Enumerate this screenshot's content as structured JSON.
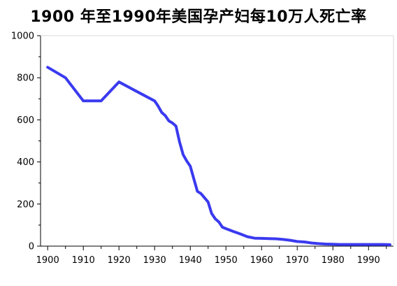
{
  "chart_data": {
    "type": "line",
    "title": "1900 年至1990年美国孕产妇每10万人死亡率",
    "xlabel": "",
    "ylabel": "",
    "xlim": [
      1898,
      1997
    ],
    "ylim": [
      0,
      1000
    ],
    "x_ticks": [
      1900,
      1910,
      1920,
      1930,
      1940,
      1950,
      1960,
      1970,
      1980,
      1990
    ],
    "y_ticks": [
      0,
      200,
      400,
      600,
      800,
      1000
    ],
    "grid": false,
    "legend": "none",
    "series": [
      {
        "color": "#3a3af0",
        "x": [
          1900,
          1905,
          1910,
          1915,
          1920,
          1925,
          1930,
          1931,
          1932,
          1933,
          1934,
          1935,
          1936,
          1937,
          1938,
          1939,
          1940,
          1941,
          1942,
          1943,
          1944,
          1945,
          1946,
          1947,
          1948,
          1949,
          1950,
          1952,
          1954,
          1956,
          1958,
          1960,
          1962,
          1964,
          1966,
          1968,
          1970,
          1972,
          1974,
          1976,
          1978,
          1980,
          1982,
          1984,
          1986,
          1988,
          1990,
          1992,
          1994,
          1996
        ],
        "values": [
          850,
          800,
          690,
          690,
          780,
          735,
          690,
          665,
          635,
          620,
          595,
          585,
          570,
          495,
          435,
          405,
          380,
          320,
          260,
          250,
          230,
          210,
          155,
          130,
          115,
          90,
          83,
          70,
          58,
          45,
          38,
          37,
          36,
          35,
          32,
          28,
          22,
          20,
          15,
          12,
          10,
          9,
          8,
          8,
          8,
          8,
          8,
          8,
          8,
          7
        ]
      }
    ]
  }
}
